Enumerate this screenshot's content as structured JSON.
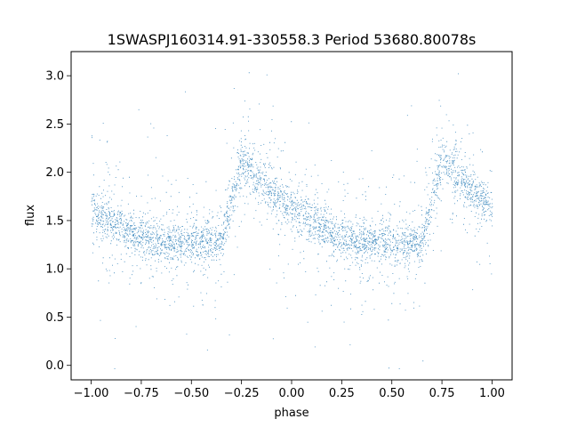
{
  "chart_data": {
    "type": "scatter",
    "title": "1SWASPJ160314.91-330558.3 Period 53680.80078s",
    "xlabel": "phase",
    "ylabel": "flux",
    "xlim": [
      -1.1,
      1.1
    ],
    "ylim": [
      -0.15,
      3.25
    ],
    "xticks": [
      -1.0,
      -0.75,
      -0.5,
      -0.25,
      0.0,
      0.25,
      0.5,
      0.75,
      1.0
    ],
    "xtick_labels": [
      "−1.00",
      "−0.75",
      "−0.50",
      "−0.25",
      "0.00",
      "0.25",
      "0.50",
      "0.75",
      "1.00"
    ],
    "yticks": [
      0.0,
      0.5,
      1.0,
      1.5,
      2.0,
      2.5,
      3.0
    ],
    "ytick_labels": [
      "0.0",
      "0.5",
      "1.0",
      "1.5",
      "2.0",
      "2.5",
      "3.0"
    ],
    "grid": false,
    "marker_color": "#1f77b4",
    "light_curve_profile": {
      "phase": [
        0.0,
        0.1,
        0.2,
        0.3,
        0.4,
        0.5,
        0.6,
        0.65,
        0.7,
        0.75,
        0.8,
        0.9,
        1.0
      ],
      "flux": [
        1.62,
        1.48,
        1.38,
        1.3,
        1.27,
        1.26,
        1.26,
        1.3,
        1.72,
        2.12,
        2.02,
        1.8,
        1.62
      ]
    },
    "series": [
      {
        "points_count": 12000
      }
    ]
  }
}
